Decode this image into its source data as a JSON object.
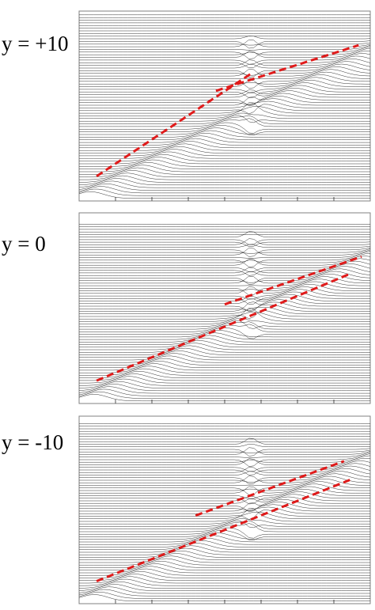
{
  "figure": {
    "panels": [
      {
        "label": "y = +10"
      },
      {
        "label": "y = 0"
      },
      {
        "label": "y = -10"
      }
    ]
  },
  "style": {
    "trace_color": "#1a1a1a",
    "frame_color": "#808080",
    "guide_color": "#e01b1b"
  },
  "chart_data": [
    {
      "type": "line",
      "title": "y = +10",
      "description_of_marks": "stacked waterfall of seismogram-like traces with two dashed guide lines",
      "guide_lines": [
        {
          "name": "",
          "style": "dashed",
          "points": [
            [
              0.06,
              0.13
            ],
            [
              0.59,
              0.67
            ]
          ]
        },
        {
          "name": "",
          "style": "dashed",
          "points": [
            [
              0.47,
              0.58
            ],
            [
              0.96,
              0.82
            ]
          ]
        }
      ],
      "xlabel": "",
      "ylabel": ""
    },
    {
      "type": "line",
      "title": "y = 0",
      "description_of_marks": "stacked waterfall of seismogram-like traces with two dashed guide lines",
      "guide_lines": [
        {
          "name": "",
          "style": "dashed",
          "points": [
            [
              0.06,
              0.12
            ],
            [
              0.93,
              0.68
            ]
          ]
        },
        {
          "name": "",
          "style": "dashed",
          "points": [
            [
              0.5,
              0.52
            ],
            [
              0.97,
              0.77
            ]
          ]
        }
      ],
      "xlabel": "",
      "ylabel": ""
    },
    {
      "type": "line",
      "title": "y = -10",
      "description_of_marks": "stacked waterfall of seismogram-like traces with two dashed guide lines",
      "guide_lines": [
        {
          "name": "",
          "style": "dashed",
          "points": [
            [
              0.06,
              0.12
            ],
            [
              0.93,
              0.66
            ]
          ]
        },
        {
          "name": "",
          "style": "dashed",
          "points": [
            [
              0.4,
              0.47
            ],
            [
              0.91,
              0.76
            ]
          ]
        }
      ],
      "xlabel": "",
      "ylabel": ""
    }
  ]
}
